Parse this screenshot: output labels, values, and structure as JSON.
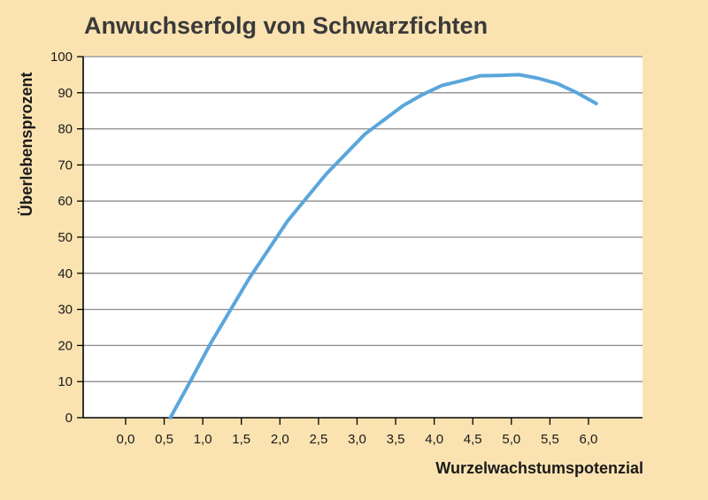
{
  "chart_data": {
    "type": "line",
    "title": "Anwuchserfolg von Schwarzfichten",
    "xlabel": "Wurzelwachstumspotenzial",
    "ylabel": "Überlebensprozent",
    "x_ticks": [
      "0,0",
      "0,5",
      "1,0",
      "1,5",
      "2,0",
      "2,5",
      "3,0",
      "3,5",
      "4,0",
      "4,5",
      "5,0",
      "5,5",
      "6,0"
    ],
    "y_ticks": [
      0,
      10,
      20,
      30,
      40,
      50,
      60,
      70,
      80,
      90,
      100
    ],
    "xlim": [
      -0.55,
      6.7
    ],
    "ylim": [
      0,
      100
    ],
    "grid": true,
    "series": [
      {
        "color": "#5aa6dc",
        "x": [
          0.58,
          0.85,
          1.1,
          1.35,
          1.6,
          1.85,
          2.1,
          2.35,
          2.6,
          2.85,
          3.1,
          3.35,
          3.6,
          3.85,
          4.1,
          4.35,
          4.6,
          4.85,
          5.1,
          5.35,
          5.6,
          5.85,
          6.1
        ],
        "y": [
          0,
          10.5,
          20.5,
          29.5,
          38.5,
          46.5,
          54.5,
          61,
          67.5,
          73,
          78.5,
          82.5,
          86.5,
          89.5,
          92,
          93.3,
          94.7,
          94.8,
          95,
          94,
          92.5,
          90,
          87
        ]
      }
    ]
  }
}
